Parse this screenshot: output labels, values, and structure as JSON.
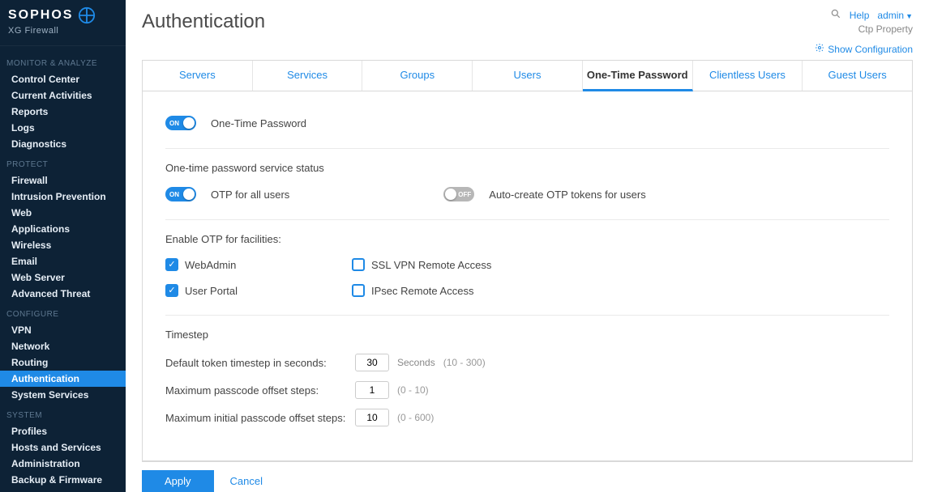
{
  "brand": {
    "name": "SOPHOS",
    "product": "XG Firewall",
    "logo_color": "#1f8ae6"
  },
  "colors": {
    "sidebar_bg": "#0d2236",
    "accent": "#1f8ae6",
    "text": "#333333",
    "muted": "#888888",
    "border": "#d9d9d9"
  },
  "header": {
    "title": "Authentication",
    "help": "Help",
    "user": "admin",
    "tenant": "Ctp Property",
    "show_config": "Show Configuration"
  },
  "sidebar": {
    "sections": [
      {
        "title": "MONITOR & ANALYZE",
        "items": [
          "Control Center",
          "Current Activities",
          "Reports",
          "Logs",
          "Diagnostics"
        ]
      },
      {
        "title": "PROTECT",
        "items": [
          "Firewall",
          "Intrusion Prevention",
          "Web",
          "Applications",
          "Wireless",
          "Email",
          "Web Server",
          "Advanced Threat"
        ]
      },
      {
        "title": "CONFIGURE",
        "items": [
          "VPN",
          "Network",
          "Routing",
          "Authentication",
          "System Services"
        ],
        "active_index": 3
      },
      {
        "title": "SYSTEM",
        "items": [
          "Profiles",
          "Hosts and Services",
          "Administration",
          "Backup & Firmware"
        ]
      }
    ]
  },
  "tabs": {
    "items": [
      "Servers",
      "Services",
      "Groups",
      "Users",
      "One-Time Password",
      "Clientless Users",
      "Guest Users"
    ],
    "active_index": 4
  },
  "otp": {
    "master_toggle": {
      "label": "One-Time Password",
      "value": true
    },
    "service_status_heading": "One-time password service status",
    "otp_all_users": {
      "label": "OTP for all users",
      "value": true
    },
    "auto_create": {
      "label": "Auto-create OTP tokens for users",
      "value": false
    },
    "facilities_heading": "Enable OTP for facilities:",
    "facilities": [
      {
        "label": "WebAdmin",
        "checked": true
      },
      {
        "label": "SSL VPN Remote Access",
        "checked": false
      },
      {
        "label": "User Portal",
        "checked": true
      },
      {
        "label": "IPsec Remote Access",
        "checked": false
      }
    ],
    "timestep_heading": "Timestep",
    "timestep": {
      "default": {
        "label": "Default token timestep in seconds:",
        "value": "30",
        "unit": "Seconds",
        "range": "(10 - 300)"
      },
      "max_offset": {
        "label": "Maximum passcode offset steps:",
        "value": "1",
        "range": "(0 - 10)"
      },
      "max_initial_offset": {
        "label": "Maximum initial passcode offset steps:",
        "value": "10",
        "range": "(0 - 600)"
      }
    }
  },
  "buttons": {
    "apply": "Apply",
    "cancel": "Cancel"
  },
  "toggle_text": {
    "on": "ON",
    "off": "OFF"
  }
}
